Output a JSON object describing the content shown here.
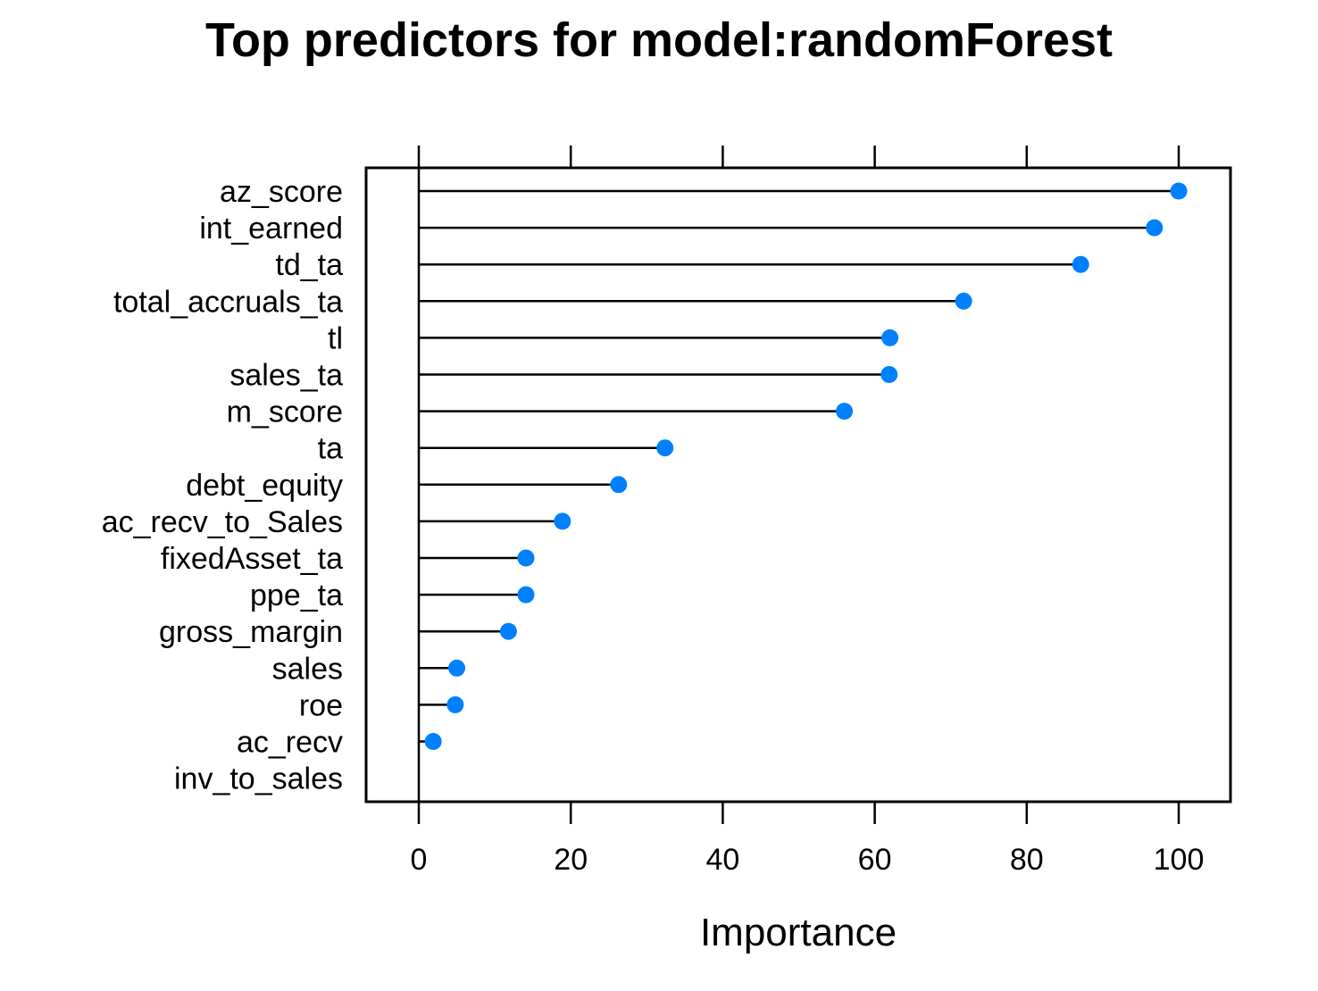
{
  "chart_data": {
    "type": "dotplot",
    "title": "Top predictors for model:randomForest",
    "xlabel": "Importance",
    "ylabel": "",
    "xlim": [
      -7,
      107
    ],
    "xticks": [
      0,
      20,
      40,
      60,
      80,
      100
    ],
    "xtick_labels": [
      "0",
      "20",
      "40",
      "60",
      "80",
      "100"
    ],
    "grid": false,
    "legend": "none",
    "point_color": "#0080FF",
    "categories": [
      "az_score",
      "int_earned",
      "td_ta",
      "total_accruals_ta",
      "tl",
      "sales_ta",
      "m_score",
      "ta",
      "debt_equity",
      "ac_recv_to_Sales",
      "fixedAsset_ta",
      "ppe_ta",
      "gross_margin",
      "sales",
      "roe",
      "ac_recv",
      "inv_to_sales"
    ],
    "values": [
      100,
      96.8,
      87.1,
      71.7,
      62.0,
      61.9,
      56.0,
      32.4,
      26.3,
      18.9,
      14.1,
      14.1,
      11.8,
      5.0,
      4.8,
      1.9,
      0
    ]
  }
}
